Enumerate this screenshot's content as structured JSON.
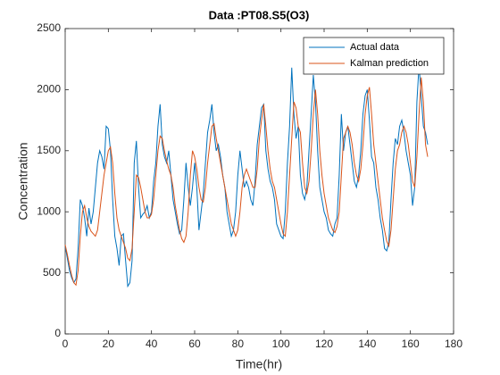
{
  "chart_data": {
    "type": "line",
    "title": "Data :PT08.S5(O3)",
    "x_label": "Time(hr)",
    "y_label": "Concentration",
    "x": [
      0,
      1,
      2,
      3,
      4,
      5,
      6,
      7,
      8,
      9,
      10,
      11,
      12,
      13,
      14,
      15,
      16,
      17,
      18,
      19,
      20,
      21,
      22,
      23,
      24,
      25,
      26,
      27,
      28,
      29,
      30,
      31,
      32,
      33,
      34,
      35,
      36,
      37,
      38,
      39,
      40,
      41,
      42,
      43,
      44,
      45,
      46,
      47,
      48,
      49,
      50,
      51,
      52,
      53,
      54,
      55,
      56,
      57,
      58,
      59,
      60,
      61,
      62,
      63,
      64,
      65,
      66,
      67,
      68,
      69,
      70,
      71,
      72,
      73,
      74,
      75,
      76,
      77,
      78,
      79,
      80,
      81,
      82,
      83,
      84,
      85,
      86,
      87,
      88,
      89,
      90,
      91,
      92,
      93,
      94,
      95,
      96,
      97,
      98,
      99,
      100,
      101,
      102,
      103,
      104,
      105,
      106,
      107,
      108,
      109,
      110,
      111,
      112,
      113,
      114,
      115,
      116,
      117,
      118,
      119,
      120,
      121,
      122,
      123,
      124,
      125,
      126,
      127,
      128,
      129,
      130,
      131,
      132,
      133,
      134,
      135,
      136,
      137,
      138,
      139,
      140,
      141,
      142,
      143,
      144,
      145,
      146,
      147,
      148,
      149,
      150,
      151,
      152,
      153,
      154,
      155,
      156,
      157,
      158,
      159,
      160,
      161,
      162,
      163,
      164,
      165,
      166,
      167,
      168
    ],
    "series": [
      {
        "name": "Actual data",
        "color": "#0072bd",
        "values": [
          720,
          620,
          520,
          460,
          420,
          450,
          700,
          1100,
          1050,
          950,
          800,
          1030,
          900,
          1000,
          1200,
          1400,
          1500,
          1450,
          1350,
          1700,
          1680,
          1500,
          1100,
          800,
          700,
          560,
          800,
          820,
          600,
          390,
          420,
          600,
          1400,
          1580,
          1200,
          950,
          980,
          1000,
          1050,
          950,
          1000,
          1250,
          1400,
          1700,
          1880,
          1550,
          1450,
          1400,
          1500,
          1300,
          1100,
          1000,
          900,
          820,
          850,
          1100,
          1400,
          1200,
          1050,
          1200,
          1400,
          1200,
          850,
          1000,
          1150,
          1400,
          1650,
          1750,
          1880,
          1650,
          1500,
          1550,
          1450,
          1300,
          1200,
          1000,
          900,
          800,
          850,
          1000,
          1300,
          1500,
          1350,
          1200,
          1250,
          1200,
          1100,
          1050,
          1250,
          1550,
          1700,
          1850,
          1880,
          1500,
          1350,
          1250,
          1200,
          1100,
          900,
          850,
          800,
          780,
          1000,
          1400,
          1700,
          2180,
          1800,
          1600,
          1700,
          1300,
          1150,
          1100,
          1200,
          1500,
          1800,
          2120,
          1900,
          1500,
          1200,
          1100,
          1000,
          950,
          850,
          820,
          800,
          900,
          950,
          1300,
          1800,
          1500,
          1650,
          1700,
          1550,
          1400,
          1250,
          1200,
          1300,
          1500,
          1800,
          1950,
          2000,
          1750,
          1450,
          1400,
          1200,
          1100,
          950,
          850,
          700,
          680,
          750,
          1100,
          1400,
          1600,
          1550,
          1700,
          1750,
          1650,
          1500,
          1400,
          1300,
          1050,
          1200,
          1900,
          2200,
          1950,
          1700,
          1650,
          1550
        ]
      },
      {
        "name": "Kalman prediction",
        "color": "#d95319",
        "values": [
          730,
          650,
          560,
          480,
          420,
          400,
          520,
          800,
          1000,
          1050,
          950,
          880,
          840,
          820,
          800,
          850,
          1000,
          1150,
          1300,
          1400,
          1500,
          1530,
          1400,
          1150,
          950,
          850,
          800,
          750,
          700,
          620,
          600,
          700,
          1000,
          1300,
          1280,
          1200,
          1100,
          1000,
          950,
          950,
          980,
          1100,
          1300,
          1500,
          1620,
          1600,
          1500,
          1420,
          1350,
          1300,
          1200,
          1050,
          950,
          850,
          780,
          750,
          800,
          1000,
          1300,
          1500,
          1450,
          1350,
          1200,
          1100,
          1080,
          1200,
          1400,
          1550,
          1700,
          1720,
          1600,
          1500,
          1400,
          1300,
          1200,
          1100,
          1000,
          900,
          850,
          800,
          850,
          1000,
          1200,
          1300,
          1350,
          1300,
          1250,
          1200,
          1200,
          1350,
          1600,
          1750,
          1880,
          1700,
          1500,
          1350,
          1250,
          1200,
          1100,
          1000,
          900,
          820,
          800,
          1000,
          1300,
          1600,
          1900,
          1850,
          1700,
          1650,
          1400,
          1200,
          1150,
          1250,
          1500,
          1800,
          2000,
          1800,
          1500,
          1300,
          1150,
          1050,
          950,
          900,
          850,
          830,
          880,
          1000,
          1300,
          1600,
          1650,
          1700,
          1650,
          1550,
          1400,
          1300,
          1250,
          1350,
          1550,
          1800,
          1950,
          2020,
          1800,
          1550,
          1400,
          1250,
          1100,
          950,
          850,
          760,
          720,
          850,
          1100,
          1350,
          1500,
          1550,
          1650,
          1700,
          1650,
          1550,
          1400,
          1250,
          1200,
          1450,
          1800,
          2100,
          1900,
          1550,
          1450
        ]
      }
    ],
    "xlim": [
      0,
      180
    ],
    "xticks": [
      0,
      20,
      40,
      60,
      80,
      100,
      120,
      140,
      160,
      180
    ],
    "ylim": [
      0,
      2500
    ],
    "yticks": [
      0,
      500,
      1000,
      1500,
      2000,
      2500
    ],
    "grid": false,
    "legend": "northeast"
  }
}
